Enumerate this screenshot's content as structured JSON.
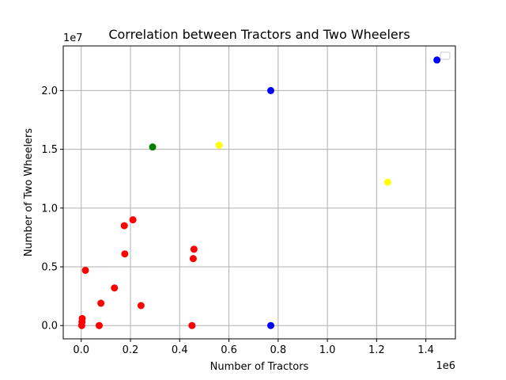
{
  "chart_data": {
    "type": "scatter",
    "title": "Correlation between Tractors and Two Wheelers",
    "xlabel": "Number of Tractors",
    "ylabel": "Number of Two Wheelers",
    "x_offset_label": "1e6",
    "y_offset_label": "1e7",
    "xlim": [
      -0.073,
      1.52
    ],
    "ylim": [
      -1.13,
      23.8
    ],
    "x_ticks": [
      0.0,
      0.2,
      0.4,
      0.6,
      0.8,
      1.0,
      1.2,
      1.4
    ],
    "x_tick_labels": [
      "0.0",
      "0.2",
      "0.4",
      "0.6",
      "0.8",
      "1.0",
      "1.2",
      "1.4"
    ],
    "y_ticks": [
      0.0,
      5.0,
      10.0,
      15.0,
      20.0
    ],
    "y_tick_labels": [
      "0.0",
      "0.5",
      "1.0",
      "1.5",
      "2.0"
    ],
    "grid": true,
    "legend": {
      "placement": "top-right",
      "entries": []
    },
    "units_note": "x in millions (1e6), y in millions (1e6); axis offset labels show 1e6 and 1e7",
    "series": [
      {
        "name": "red",
        "color": "#ff0000",
        "points": [
          [
            0.002,
            0.0
          ],
          [
            0.003,
            0.3
          ],
          [
            0.004,
            0.6
          ],
          [
            0.017,
            4.7
          ],
          [
            0.073,
            0.0
          ],
          [
            0.08,
            1.9
          ],
          [
            0.135,
            3.2
          ],
          [
            0.175,
            8.5
          ],
          [
            0.177,
            6.1
          ],
          [
            0.21,
            9.0
          ],
          [
            0.243,
            1.7
          ],
          [
            0.45,
            0.0
          ],
          [
            0.455,
            5.7
          ],
          [
            0.458,
            6.5
          ]
        ]
      },
      {
        "name": "green",
        "color": "#008000",
        "points": [
          [
            0.29,
            15.2
          ]
        ]
      },
      {
        "name": "yellow",
        "color": "#ffff00",
        "points": [
          [
            0.56,
            15.35
          ],
          [
            1.245,
            12.2
          ]
        ]
      },
      {
        "name": "blue",
        "color": "#0000ff",
        "points": [
          [
            0.77,
            20.0
          ],
          [
            0.77,
            0.0
          ],
          [
            1.445,
            22.6
          ]
        ]
      }
    ]
  }
}
